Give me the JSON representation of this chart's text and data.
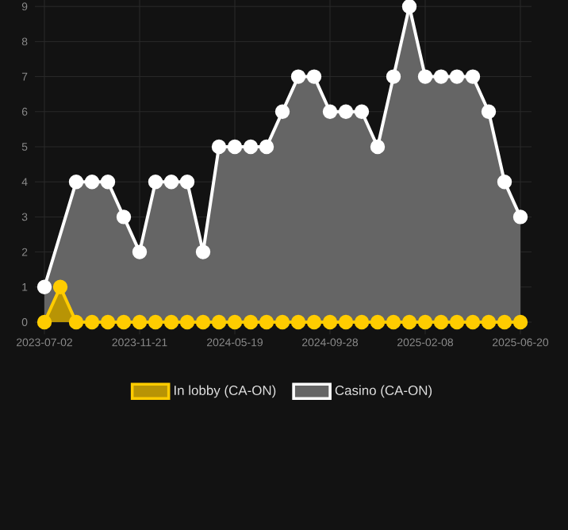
{
  "chart_data": {
    "type": "area",
    "categories": [
      "2023-07-02",
      null,
      null,
      null,
      null,
      null,
      "2023-11-21",
      null,
      null,
      null,
      null,
      null,
      "2024-05-19",
      null,
      null,
      null,
      null,
      null,
      "2024-09-28",
      null,
      null,
      null,
      null,
      null,
      "2025-02-08",
      null,
      null,
      null,
      null,
      null,
      "2025-06-20"
    ],
    "series": [
      {
        "name": "In lobby (CA-ON)",
        "color": "#ffcc00",
        "values": [
          0,
          1,
          0,
          0,
          0,
          0,
          0,
          0,
          0,
          0,
          0,
          0,
          0,
          0,
          0,
          0,
          0,
          0,
          0,
          0,
          0,
          0,
          0,
          0,
          0,
          0,
          0,
          0,
          0,
          0,
          0
        ]
      },
      {
        "name": "Casino (CA-ON)",
        "color": "#ffffff",
        "values": [
          1,
          null,
          4,
          4,
          4,
          3,
          2,
          4,
          4,
          4,
          2,
          5,
          5,
          5,
          5,
          6,
          7,
          7,
          6,
          6,
          6,
          5,
          7,
          9,
          7,
          7,
          7,
          7,
          6,
          4,
          3
        ]
      }
    ],
    "ylim": [
      0,
      9
    ],
    "yticks": [
      0,
      1,
      2,
      3,
      4,
      5,
      6,
      7,
      8,
      9
    ],
    "grid": true,
    "legend": "bottom",
    "marker": "circle",
    "line_style": "solid"
  }
}
